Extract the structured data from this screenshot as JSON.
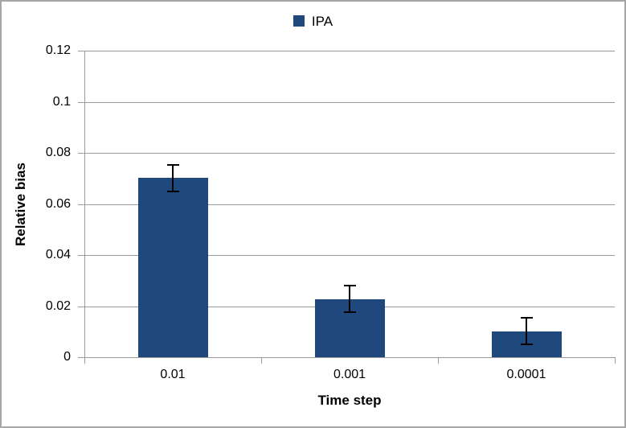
{
  "legend": {
    "label": "IPA"
  },
  "colors": {
    "bar": "#1F497D",
    "grid": "#9a9a9a",
    "axis": "#9a9a9a",
    "error_bar": "#000000",
    "frame_border": "#a6a6a6",
    "text": "#000000"
  },
  "chart_data": {
    "type": "bar",
    "title": "",
    "xlabel": "Time step",
    "ylabel": "Relative bias",
    "categories": [
      "0.01",
      "0.001",
      "0.0001"
    ],
    "series": [
      {
        "name": "IPA",
        "values": [
          0.0702,
          0.0228,
          0.0102
        ],
        "errors": [
          0.0055,
          0.0055,
          0.0055
        ],
        "color": "#1F497D"
      }
    ],
    "ylim": [
      0,
      0.12
    ],
    "ytick_values": [
      0,
      0.02,
      0.04,
      0.06,
      0.08,
      0.1,
      0.12
    ],
    "ytick_labels": [
      "0",
      "0.02",
      "0.04",
      "0.06",
      "0.08",
      "0.1",
      "0.12"
    ],
    "grid": true,
    "legend_position": "top-center",
    "error_bars": true
  }
}
